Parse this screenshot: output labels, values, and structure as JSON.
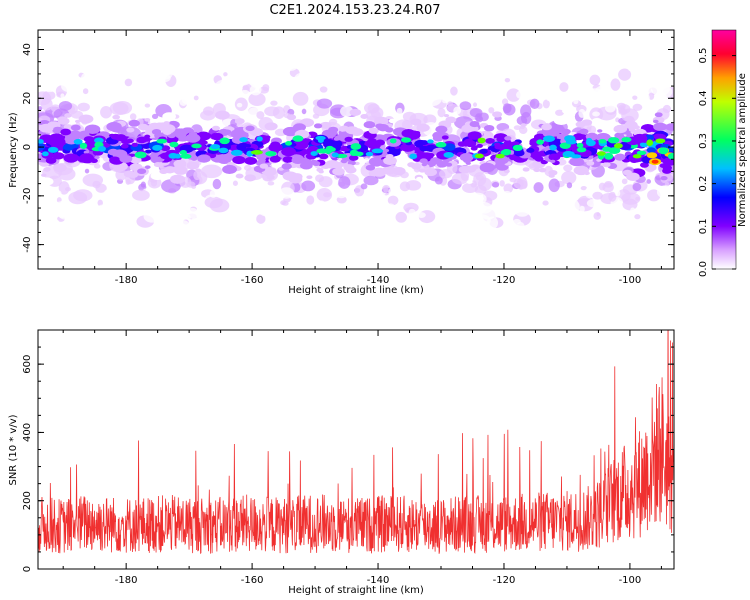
{
  "figure": {
    "title": "C2E1.2024.153.23.24.R07"
  },
  "chart_data": [
    {
      "type": "heatmap",
      "xlabel": "Height of straight line (km)",
      "ylabel": "Frequency (Hz)",
      "xlim": [
        -194,
        -93
      ],
      "ylim": [
        -50,
        48
      ],
      "xticks": [
        -180,
        -160,
        -140,
        -120,
        -100
      ],
      "yticks": [
        -40,
        -20,
        0,
        20,
        40
      ],
      "grid": false,
      "description_of_values": "Spectral power concentrated near 0 Hz (band roughly -10 to +10 Hz) across all heights; strongest amplitude near -96 km",
      "band_center_hz": 0,
      "band_halfwidth_hz": 8,
      "peak_amplitude": 0.55,
      "peak_height_km": -96,
      "colorbar": {
        "label": "Normalized spectral amplitude",
        "range": [
          0.0,
          0.56
        ],
        "ticks": [
          0.0,
          0.1,
          0.2,
          0.3,
          0.4,
          0.5
        ],
        "colormap": [
          "#ffffff",
          "#a000ff",
          "#0000ff",
          "#00ffff",
          "#00ff00",
          "#ffff00",
          "#ff0000",
          "#ff00ff"
        ]
      }
    },
    {
      "type": "line",
      "xlabel": "Height of straight line (km)",
      "ylabel": "SNR (10 * v/v)",
      "xlim": [
        -194,
        -93
      ],
      "ylim": [
        0,
        700
      ],
      "xticks": [
        -180,
        -160,
        -140,
        -120,
        -100
      ],
      "yticks": [
        0,
        200,
        400,
        600
      ],
      "grid": false,
      "color": "#f03030",
      "series": [
        {
          "x": [
            -194,
            -190,
            -186,
            -182,
            -178,
            -174,
            -170,
            -166,
            -162,
            -158,
            -154,
            -150,
            -146,
            -142,
            -138,
            -134,
            -130,
            -126,
            -122,
            -118,
            -114,
            -110,
            -106,
            -104,
            -102,
            -100,
            -98,
            -96,
            -95,
            -94,
            -93
          ],
          "y": [
            130,
            125,
            135,
            130,
            128,
            132,
            130,
            127,
            133,
            130,
            128,
            135,
            130,
            128,
            132,
            130,
            127,
            133,
            130,
            135,
            138,
            140,
            150,
            175,
            215,
            230,
            260,
            330,
            360,
            300,
            250
          ]
        }
      ]
    }
  ]
}
